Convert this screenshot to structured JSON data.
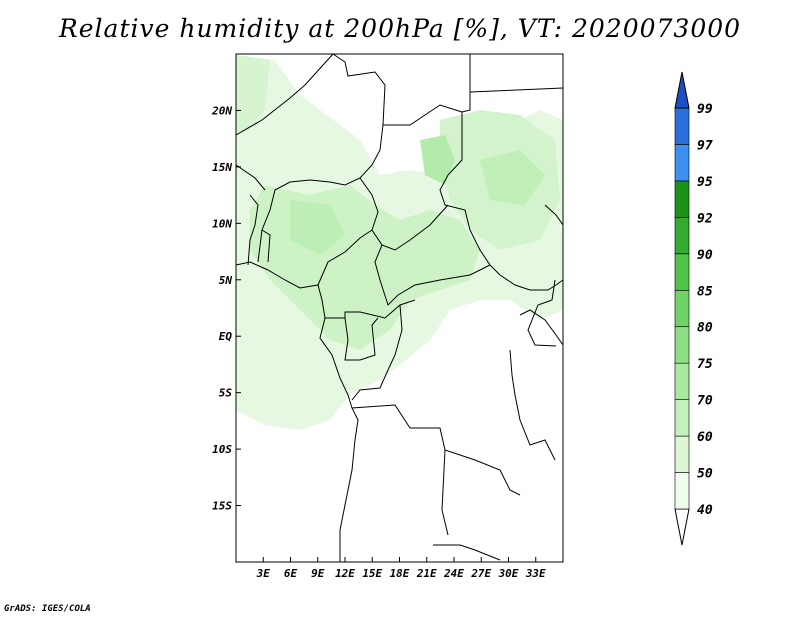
{
  "title": "Relative humidity at 200hPa [%], VT: 2020073000",
  "credit": "GrADS: IGES/COLA",
  "map": {
    "lon_range": [
      0,
      36
    ],
    "lat_range": [
      -20,
      25
    ],
    "lon_ticks": [
      {
        "value": 3,
        "label": "3E"
      },
      {
        "value": 6,
        "label": "6E"
      },
      {
        "value": 9,
        "label": "9E"
      },
      {
        "value": 12,
        "label": "12E"
      },
      {
        "value": 15,
        "label": "15E"
      },
      {
        "value": 18,
        "label": "18E"
      },
      {
        "value": 21,
        "label": "21E"
      },
      {
        "value": 24,
        "label": "24E"
      },
      {
        "value": 27,
        "label": "27E"
      },
      {
        "value": 30,
        "label": "30E"
      },
      {
        "value": 33,
        "label": "33E"
      }
    ],
    "lat_ticks": [
      {
        "value": 20,
        "label": "20N"
      },
      {
        "value": 15,
        "label": "15N"
      },
      {
        "value": 10,
        "label": "10N"
      },
      {
        "value": 5,
        "label": "5N"
      },
      {
        "value": 0,
        "label": "EQ"
      },
      {
        "value": -5,
        "label": "5S"
      },
      {
        "value": -10,
        "label": "10S"
      },
      {
        "value": -15,
        "label": "15S"
      }
    ]
  },
  "colorbar": {
    "levels": [
      "40",
      "50",
      "60",
      "70",
      "75",
      "80",
      "85",
      "90",
      "92",
      "95",
      "97",
      "99"
    ],
    "colors": [
      "#f0fcee",
      "#dcf6d6",
      "#c3f0bc",
      "#a8e8a0",
      "#8ddd84",
      "#70d266",
      "#52c24a",
      "#34aa30",
      "#1c9218",
      "#3d8ff0",
      "#2a6fdc",
      "#1d4fc4"
    ]
  }
}
